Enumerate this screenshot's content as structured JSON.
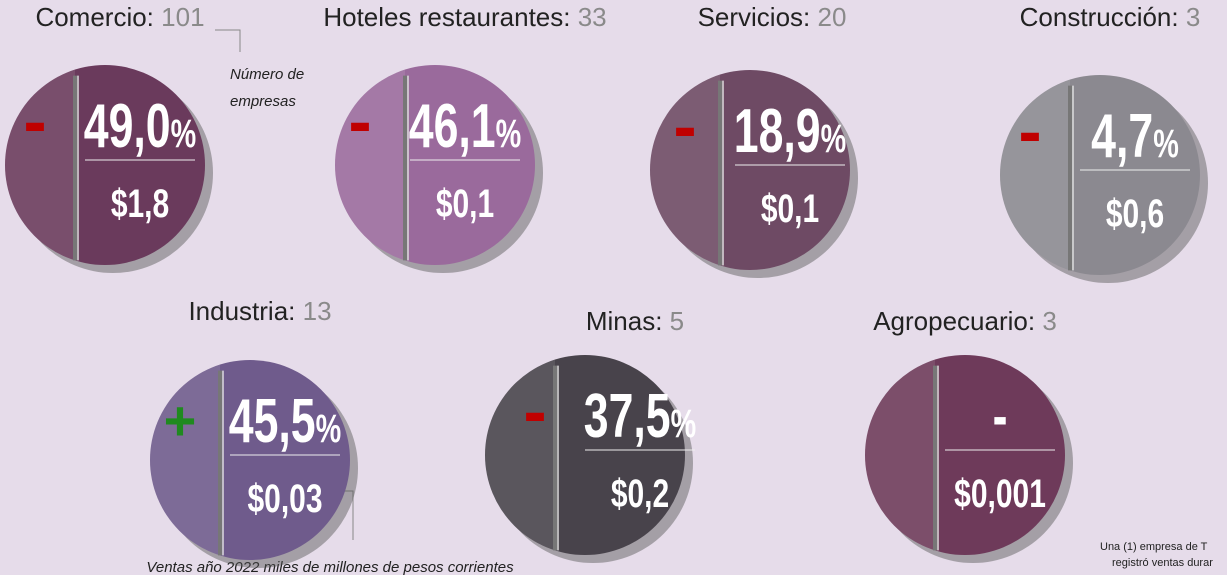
{
  "sectors": [
    {
      "name": "Comercio:",
      "count": 101,
      "sign": "-",
      "change": "49,0",
      "sales": "$1,8",
      "color": "#6a3a5c"
    },
    {
      "name": "Hoteles restaurantes:",
      "count": 33,
      "sign": "-",
      "change": "46,1",
      "sales": "$0,1",
      "color": "#9a6a9c"
    },
    {
      "name": "Servicios:",
      "count": 20,
      "sign": "-",
      "change": "18,9",
      "sales": "$0,1",
      "color": "#6e4a64"
    },
    {
      "name": "Construcción:",
      "count": 3,
      "sign": "-",
      "change": "4,7",
      "sales": "$0,6",
      "color": "#8b8990"
    },
    {
      "name": "Industria:",
      "count": 13,
      "sign": "+",
      "change": "45,5",
      "sales": "$0,03",
      "color": "#6f5b8c"
    },
    {
      "name": "Minas:",
      "count": 5,
      "sign": "-",
      "change": "37,5",
      "sales": "$0,2",
      "color": "#48434b"
    },
    {
      "name": "Agropecuario:",
      "count": 3,
      "change": "-",
      "sales": "$0,001",
      "color": "#6e3a5a"
    }
  ],
  "unit": "%",
  "annotations": {
    "count_note": [
      "Número de",
      "empresas"
    ],
    "sales_note": "Ventas año 2022 miles de millones de pesos corrientes",
    "footnote": [
      "Una (1) empresa de T",
      "registró ventas durar"
    ]
  }
}
